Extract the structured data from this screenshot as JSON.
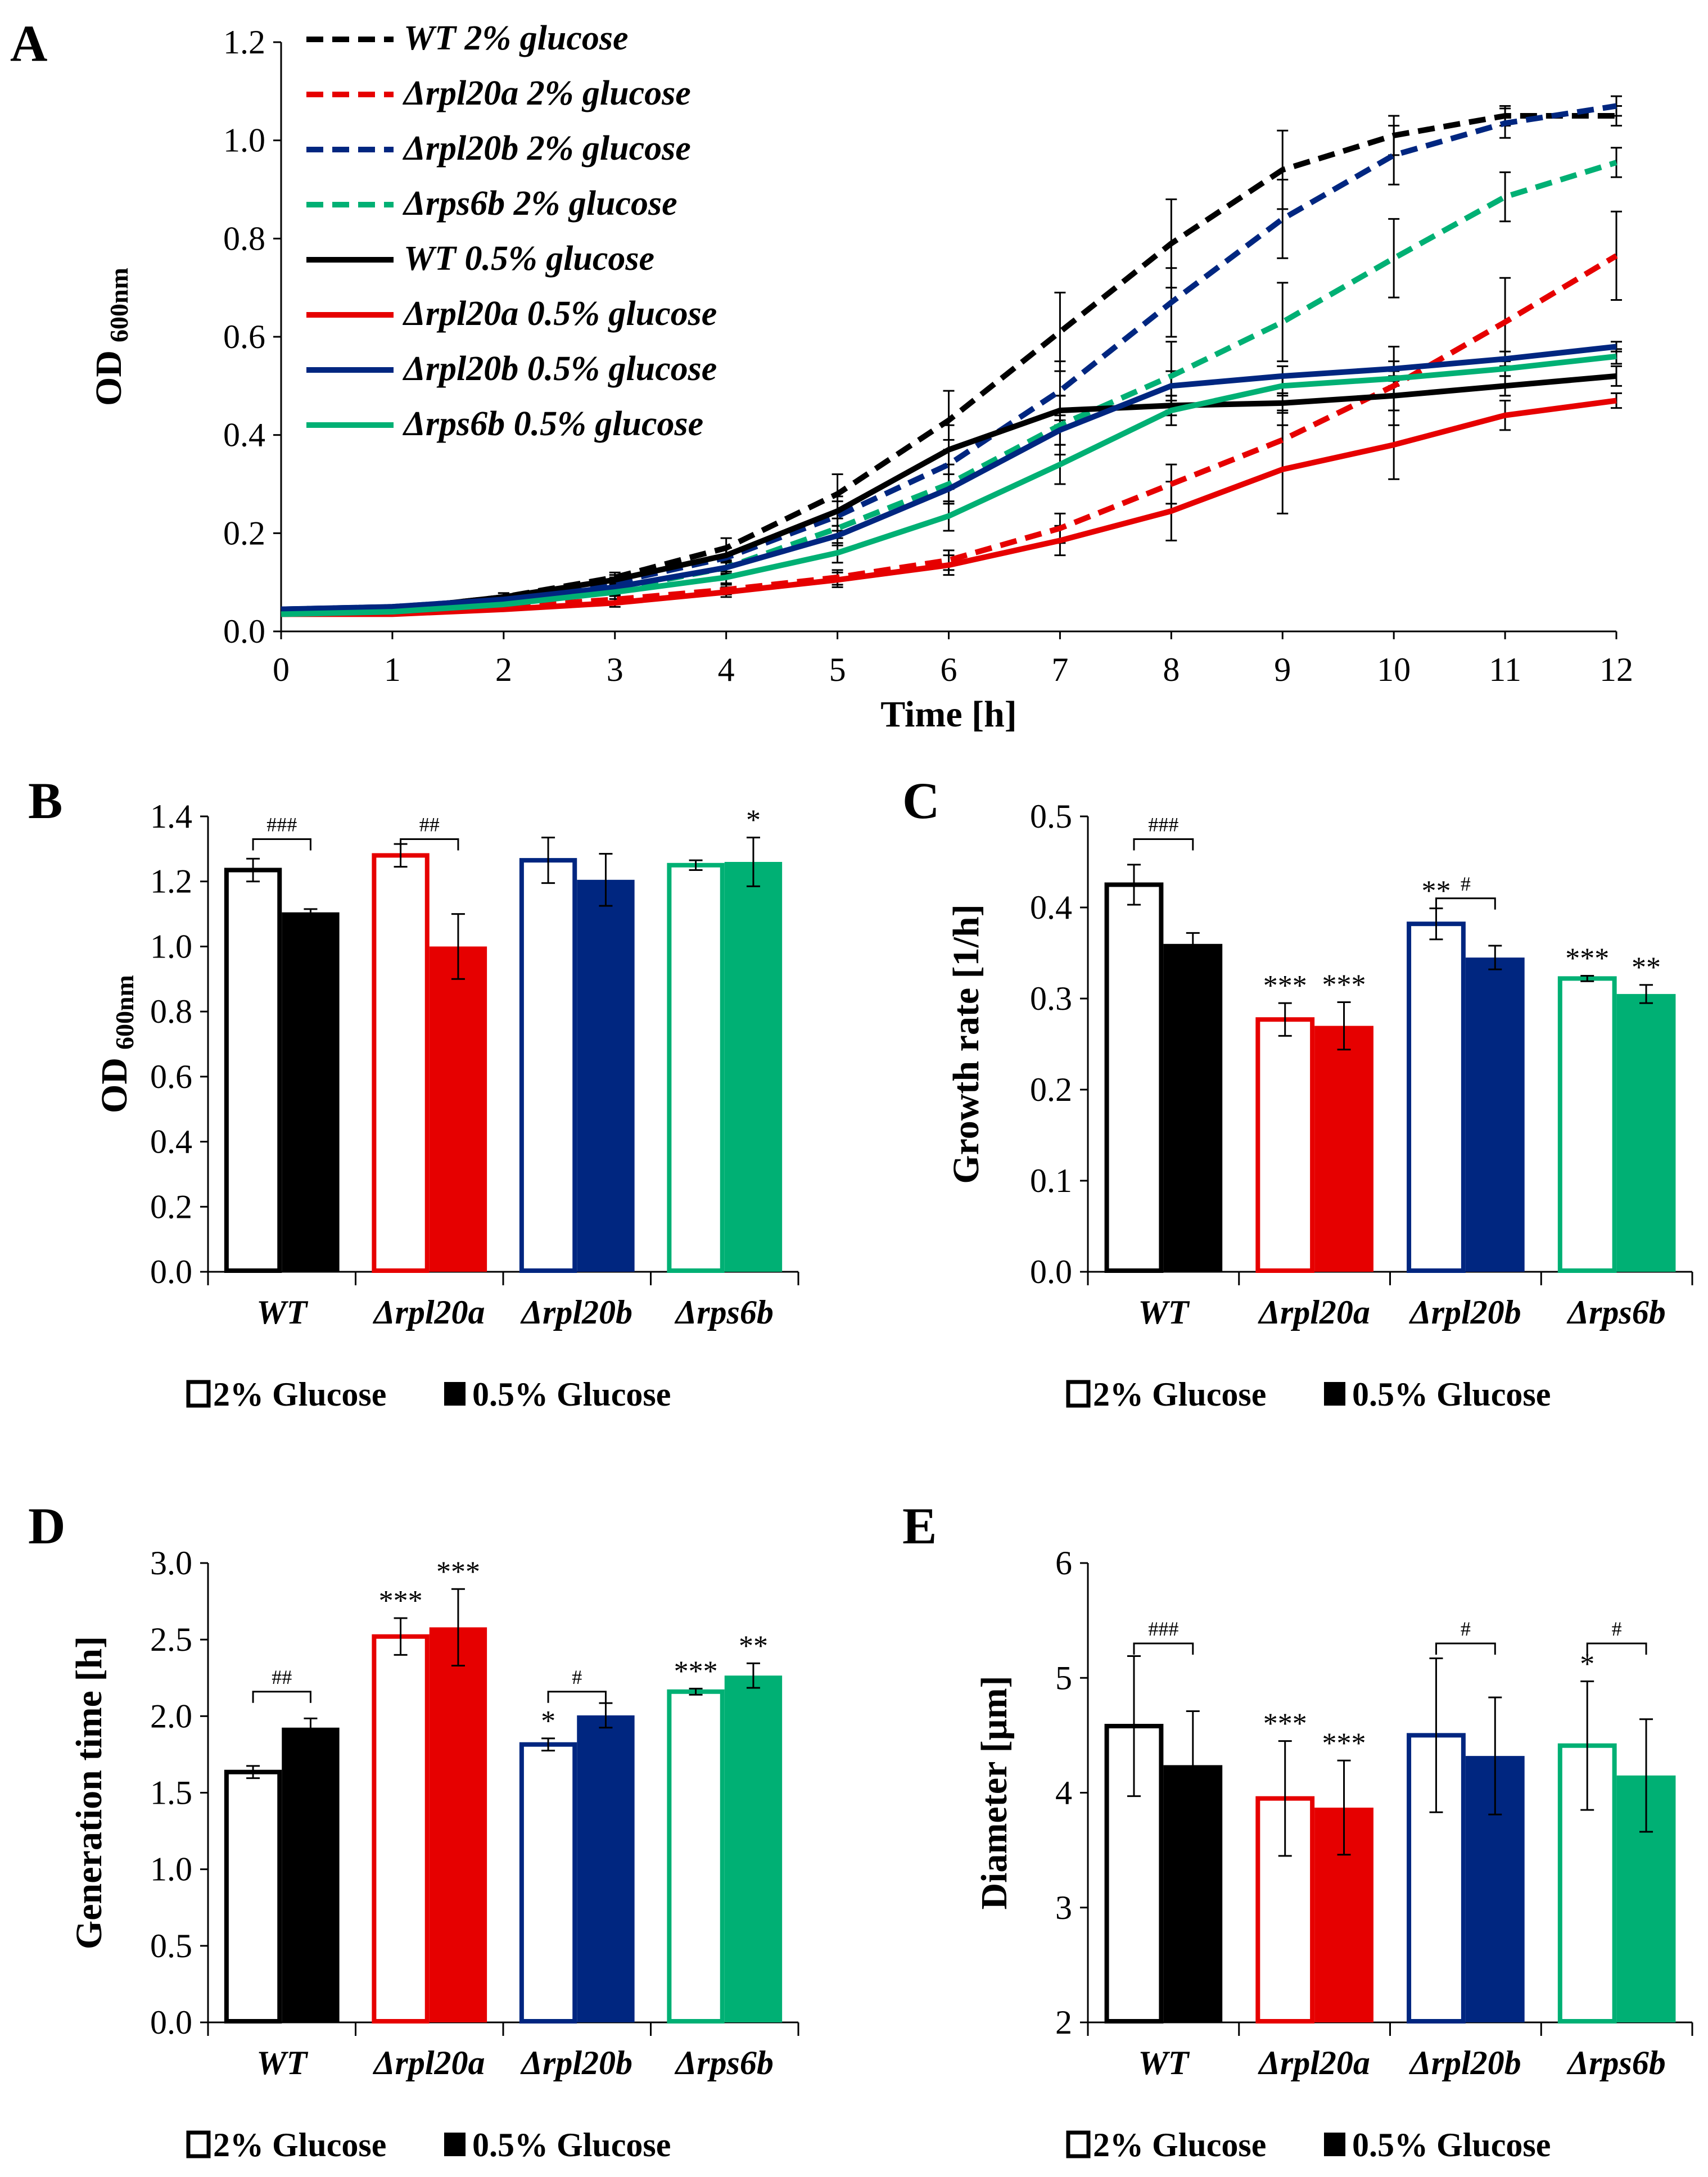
{
  "colors": {
    "WT": "#000000",
    "rpl20a": "#e60000",
    "rpl20b": "#002680",
    "rps6b": "#00b074"
  },
  "chart_data": [
    {
      "panel": "A",
      "type": "line",
      "xlabel": "Time [h]",
      "ylabel": "OD",
      "ylabel_sub": "600nm",
      "xlim": [
        0,
        12
      ],
      "ylim": [
        0,
        1.2
      ],
      "x_ticks": [
        "0",
        "1",
        "2",
        "3",
        "4",
        "5",
        "6",
        "7",
        "8",
        "9",
        "10",
        "11",
        "12"
      ],
      "y_ticks": [
        "0.0",
        "0.2",
        "0.4",
        "0.6",
        "0.8",
        "1.0",
        "1.2"
      ],
      "x": [
        0,
        1,
        2,
        3,
        4,
        5,
        6,
        7,
        8,
        9,
        10,
        11,
        12
      ],
      "series": [
        {
          "name": "WT 2% glucose",
          "strain": "WT",
          "style": "dashed",
          "values": [
            0.035,
            0.045,
            0.07,
            0.11,
            0.17,
            0.28,
            0.43,
            0.61,
            0.79,
            0.94,
            1.01,
            1.05,
            1.05
          ],
          "errors": [
            0.005,
            0.005,
            0.008,
            0.01,
            0.02,
            0.04,
            0.06,
            0.08,
            0.09,
            0.08,
            0.04,
            0.02,
            0.02
          ]
        },
        {
          "name": "Δrpl20a 2% glucose",
          "strain": "rpl20a",
          "style": "dashed",
          "values": [
            0.035,
            0.04,
            0.05,
            0.065,
            0.085,
            0.11,
            0.145,
            0.21,
            0.3,
            0.39,
            0.5,
            0.63,
            0.765
          ],
          "errors": [
            0.005,
            0.005,
            0.005,
            0.008,
            0.01,
            0.015,
            0.02,
            0.03,
            0.04,
            0.06,
            0.08,
            0.09,
            0.09
          ]
        },
        {
          "name": "Δrpl20b 2% glucose",
          "strain": "rpl20b",
          "style": "dashed",
          "values": [
            0.045,
            0.05,
            0.065,
            0.1,
            0.15,
            0.235,
            0.34,
            0.49,
            0.67,
            0.84,
            0.97,
            1.035,
            1.07
          ],
          "errors": [
            0.005,
            0.006,
            0.008,
            0.01,
            0.02,
            0.03,
            0.05,
            0.06,
            0.07,
            0.08,
            0.06,
            0.03,
            0.02
          ]
        },
        {
          "name": "Δrps6b 2% glucose",
          "strain": "rps6b",
          "style": "dashed",
          "values": [
            0.035,
            0.04,
            0.055,
            0.085,
            0.13,
            0.21,
            0.3,
            0.42,
            0.52,
            0.63,
            0.76,
            0.885,
            0.955
          ],
          "errors": [
            0.005,
            0.005,
            0.006,
            0.01,
            0.015,
            0.02,
            0.04,
            0.06,
            0.07,
            0.08,
            0.08,
            0.05,
            0.03
          ]
        },
        {
          "name": "WT 0.5% glucose",
          "strain": "WT",
          "style": "solid",
          "values": [
            0.04,
            0.045,
            0.07,
            0.105,
            0.155,
            0.245,
            0.37,
            0.45,
            0.46,
            0.465,
            0.48,
            0.5,
            0.52
          ],
          "errors": [
            0.005,
            0.005,
            0.008,
            0.01,
            0.015,
            0.03,
            0.05,
            0.03,
            0.02,
            0.02,
            0.03,
            0.02,
            0.02
          ]
        },
        {
          "name": "Δrpl20a 0.5% glucose",
          "strain": "rpl20a",
          "style": "solid",
          "values": [
            0.035,
            0.035,
            0.045,
            0.058,
            0.08,
            0.105,
            0.135,
            0.185,
            0.245,
            0.33,
            0.38,
            0.44,
            0.47
          ],
          "errors": [
            0.005,
            0.005,
            0.005,
            0.008,
            0.01,
            0.015,
            0.02,
            0.03,
            0.06,
            0.09,
            0.07,
            0.03,
            0.015
          ]
        },
        {
          "name": "Δrpl20b 0.5% glucose",
          "strain": "rpl20b",
          "style": "solid",
          "values": [
            0.045,
            0.05,
            0.065,
            0.09,
            0.13,
            0.195,
            0.29,
            0.41,
            0.5,
            0.52,
            0.535,
            0.555,
            0.58
          ],
          "errors": [
            0.005,
            0.005,
            0.006,
            0.008,
            0.012,
            0.02,
            0.03,
            0.03,
            0.03,
            0.02,
            0.015,
            0.015,
            0.01
          ]
        },
        {
          "name": "Δrps6b 0.5% glucose",
          "strain": "rps6b",
          "style": "solid",
          "values": [
            0.035,
            0.04,
            0.055,
            0.08,
            0.11,
            0.16,
            0.235,
            0.34,
            0.45,
            0.5,
            0.515,
            0.535,
            0.56
          ],
          "errors": [
            0.005,
            0.005,
            0.006,
            0.008,
            0.012,
            0.02,
            0.03,
            0.04,
            0.03,
            0.02,
            0.015,
            0.015,
            0.015
          ]
        }
      ]
    },
    {
      "panel": "B",
      "type": "bar",
      "ylabel": "OD",
      "ylabel_sub": "600nm",
      "ylim": [
        0,
        1.4
      ],
      "y_ticks": [
        "0.0",
        "0.2",
        "0.4",
        "0.6",
        "0.8",
        "1.0",
        "1.2",
        "1.4"
      ],
      "categories": [
        "WT",
        "Δrpl20a",
        "Δrpl20b",
        "Δrps6b"
      ],
      "strains": [
        "WT",
        "rpl20a",
        "rpl20b",
        "rps6b"
      ],
      "series": [
        {
          "name": "2% Glucose",
          "values": [
            1.235,
            1.28,
            1.265,
            1.25
          ],
          "errors": [
            0.035,
            0.035,
            0.07,
            0.015
          ]
        },
        {
          "name": "0.5% Glucose",
          "values": [
            1.105,
            1.0,
            1.205,
            1.26
          ],
          "errors": [
            0.01,
            0.1,
            0.08,
            0.075
          ]
        }
      ],
      "stars": [
        [
          "",
          ""
        ],
        [
          "",
          ""
        ],
        [
          "",
          ""
        ],
        [
          "",
          "*"
        ]
      ],
      "brackets": [
        {
          "category": 0,
          "label": "###",
          "y": 1.33
        },
        {
          "category": 1,
          "label": "##",
          "y": 1.33
        }
      ]
    },
    {
      "panel": "C",
      "type": "bar",
      "ylabel": "Growth rate [1/h]",
      "ylim": [
        0,
        0.5
      ],
      "y_ticks": [
        "0.0",
        "0.1",
        "0.2",
        "0.3",
        "0.4",
        "0.5"
      ],
      "categories": [
        "WT",
        "Δrpl20a",
        "Δrpl20b",
        "Δrps6b"
      ],
      "strains": [
        "WT",
        "rpl20a",
        "rpl20b",
        "rps6b"
      ],
      "series": [
        {
          "name": "2% Glucose",
          "values": [
            0.425,
            0.277,
            0.382,
            0.322
          ],
          "errors": [
            0.022,
            0.018,
            0.017,
            0.003
          ]
        },
        {
          "name": "0.5% Glucose",
          "values": [
            0.36,
            0.27,
            0.345,
            0.305
          ],
          "errors": [
            0.012,
            0.026,
            0.013,
            0.01
          ]
        }
      ],
      "stars": [
        [
          "",
          ""
        ],
        [
          "***",
          "***"
        ],
        [
          "**",
          ""
        ],
        [
          "***",
          "**"
        ]
      ],
      "brackets": [
        {
          "category": 0,
          "label": "###",
          "y": 0.475
        },
        {
          "category": 2,
          "label": "#",
          "y": 0.41
        }
      ]
    },
    {
      "panel": "D",
      "type": "bar",
      "ylabel": "Generation time [h]",
      "ylim": [
        0,
        3.0
      ],
      "y_ticks": [
        "0.0",
        "0.5",
        "1.0",
        "1.5",
        "2.0",
        "2.5",
        "3.0"
      ],
      "categories": [
        "WT",
        "Δrpl20a",
        "Δrpl20b",
        "Δrps6b"
      ],
      "strains": [
        "WT",
        "rpl20a",
        "rpl20b",
        "rps6b"
      ],
      "series": [
        {
          "name": "2% Glucose",
          "values": [
            1.635,
            2.52,
            1.815,
            2.16
          ],
          "errors": [
            0.04,
            0.12,
            0.04,
            0.02
          ]
        },
        {
          "name": "0.5% Glucose",
          "values": [
            1.925,
            2.58,
            2.005,
            2.265
          ],
          "errors": [
            0.06,
            0.25,
            0.08,
            0.08
          ]
        }
      ],
      "stars": [
        [
          "",
          ""
        ],
        [
          "***",
          "***"
        ],
        [
          "*",
          ""
        ],
        [
          "***",
          "**"
        ]
      ],
      "brackets": [
        {
          "category": 0,
          "label": "##",
          "y": 2.16
        },
        {
          "category": 2,
          "label": "#",
          "y": 2.16
        }
      ]
    },
    {
      "panel": "E",
      "type": "bar",
      "ylabel": "Diameter [µm]",
      "ylim": [
        2,
        6
      ],
      "y_ticks": [
        "2",
        "3",
        "4",
        "5",
        "6"
      ],
      "categories": [
        "WT",
        "Δrpl20a",
        "Δrpl20b",
        "Δrps6b"
      ],
      "strains": [
        "WT",
        "rpl20a",
        "rpl20b",
        "rps6b"
      ],
      "series": [
        {
          "name": "2% Glucose",
          "values": [
            4.58,
            3.95,
            4.5,
            4.41
          ],
          "errors": [
            0.61,
            0.5,
            0.67,
            0.56
          ]
        },
        {
          "name": "0.5% Glucose",
          "values": [
            4.24,
            3.87,
            4.32,
            4.15
          ],
          "errors": [
            0.47,
            0.41,
            0.51,
            0.49
          ]
        }
      ],
      "stars": [
        [
          "",
          ""
        ],
        [
          "***",
          "***"
        ],
        [
          "",
          ""
        ],
        [
          "*",
          ""
        ]
      ],
      "brackets": [
        {
          "category": 0,
          "label": "###",
          "y": 5.3
        },
        {
          "category": 2,
          "label": "#",
          "y": 5.3
        },
        {
          "category": 3,
          "label": "#",
          "y": 5.3
        }
      ]
    }
  ]
}
